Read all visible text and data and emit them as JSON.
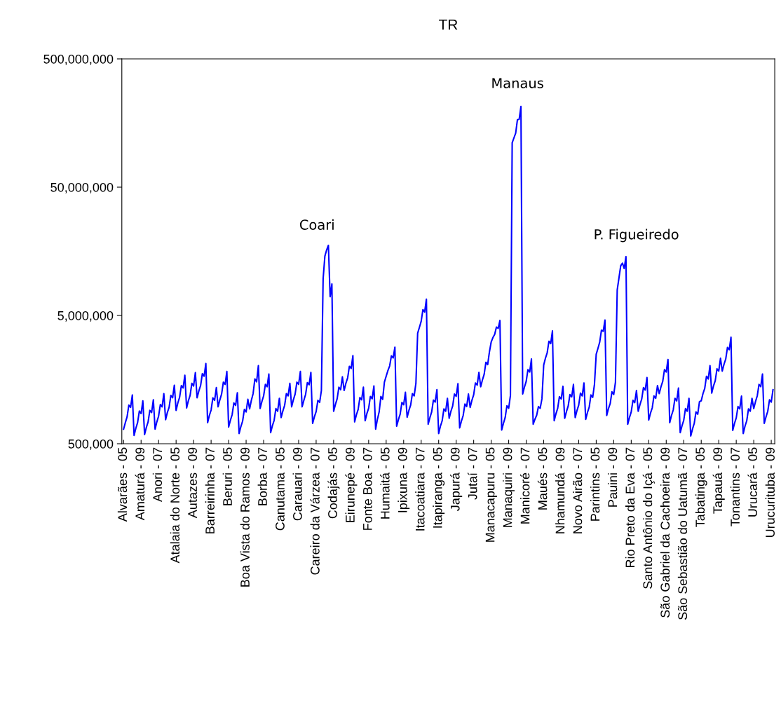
{
  "chart_data": {
    "type": "line",
    "title": "TR",
    "categories": [
      "Alvarães - 05",
      null,
      null,
      null,
      null,
      null,
      null,
      null,
      null,
      null,
      "Amaturá - 09",
      null,
      null,
      null,
      null,
      null,
      null,
      null,
      null,
      null,
      "Anori - 07",
      null,
      null,
      null,
      null,
      null,
      null,
      null,
      null,
      null,
      "Atalaia do Norte - 05",
      null,
      null,
      null,
      null,
      null,
      null,
      null,
      null,
      null,
      "Autazes - 09",
      null,
      null,
      null,
      null,
      null,
      null,
      null,
      null,
      null,
      "Barreirinha - 07",
      null,
      null,
      null,
      null,
      null,
      null,
      null,
      null,
      null,
      "Beruri - 05",
      null,
      null,
      null,
      null,
      null,
      null,
      null,
      null,
      null,
      "Boa Vista do Ramos - 09",
      null,
      null,
      null,
      null,
      null,
      null,
      null,
      null,
      null,
      "Borba - 07",
      null,
      null,
      null,
      null,
      null,
      null,
      null,
      null,
      null,
      "Canutama - 05",
      null,
      null,
      null,
      null,
      null,
      null,
      null,
      null,
      null,
      "Carauari - 09",
      null,
      null,
      null,
      null,
      null,
      null,
      null,
      null,
      null,
      "Careiro da Várzea - 07",
      null,
      null,
      null,
      null,
      null,
      null,
      null,
      null,
      null,
      "Codajás - 05",
      null,
      null,
      null,
      null,
      null,
      null,
      null,
      null,
      null,
      "Eirunepé - 09",
      null,
      null,
      null,
      null,
      null,
      null,
      null,
      null,
      null,
      "Fonte Boa - 07",
      null,
      null,
      null,
      null,
      null,
      null,
      null,
      null,
      null,
      "Humaitá - 05",
      null,
      null,
      null,
      null,
      null,
      null,
      null,
      null,
      null,
      "Ipixuna - 09",
      null,
      null,
      null,
      null,
      null,
      null,
      null,
      null,
      null,
      "Itacoatiara - 07",
      null,
      null,
      null,
      null,
      null,
      null,
      null,
      null,
      null,
      "Itapiranga - 05",
      null,
      null,
      null,
      null,
      null,
      null,
      null,
      null,
      null,
      "Japurá - 09",
      null,
      null,
      null,
      null,
      null,
      null,
      null,
      null,
      null,
      "Jutaí - 07",
      null,
      null,
      null,
      null,
      null,
      null,
      null,
      null,
      null,
      "Manacapuru - 05",
      null,
      null,
      null,
      null,
      null,
      null,
      null,
      null,
      null,
      "Manaquiri - 09",
      null,
      null,
      null,
      null,
      null,
      null,
      null,
      null,
      null,
      "Manicoré - 07",
      null,
      null,
      null,
      null,
      null,
      null,
      null,
      null,
      null,
      "Maués - 05",
      null,
      null,
      null,
      null,
      null,
      null,
      null,
      null,
      null,
      "Nhamundá - 09",
      null,
      null,
      null,
      null,
      null,
      null,
      null,
      null,
      null,
      "Novo Airão - 07",
      null,
      null,
      null,
      null,
      null,
      null,
      null,
      null,
      null,
      "Parintins - 05",
      null,
      null,
      null,
      null,
      null,
      null,
      null,
      null,
      null,
      "Pauini - 09",
      null,
      null,
      null,
      null,
      null,
      null,
      null,
      null,
      null,
      "Rio Preto da Eva - 07",
      null,
      null,
      null,
      null,
      null,
      null,
      null,
      null,
      null,
      "Santo Antônio do Içá - 05",
      null,
      null,
      null,
      null,
      null,
      null,
      null,
      null,
      null,
      "São Gabriel da Cachoeira - 09",
      null,
      null,
      null,
      null,
      null,
      null,
      null,
      null,
      null,
      "São Sebastião do Uatumã - 07",
      null,
      null,
      null,
      null,
      null,
      null,
      null,
      null,
      null,
      "Tabatinga - 05",
      null,
      null,
      null,
      null,
      null,
      null,
      null,
      null,
      null,
      "Tapauá - 09",
      null,
      null,
      null,
      null,
      null,
      null,
      null,
      null,
      null,
      "Tonantins - 07",
      null,
      null,
      null,
      null,
      null,
      null,
      null,
      null,
      null,
      "Urucará - 05",
      null,
      null,
      null,
      null,
      null,
      null,
      null,
      null,
      null,
      "Urucurituba - 09",
      null
    ],
    "values": [
      650000,
      730000,
      810000,
      1000000,
      960000,
      1200000,
      580000,
      660000,
      730000,
      900000,
      860000,
      1080000,
      590000,
      670000,
      740000,
      910000,
      875000,
      1100000,
      650000,
      740000,
      820000,
      1010000,
      970000,
      1230000,
      770000,
      875000,
      960000,
      1190000,
      1140000,
      1430000,
      910000,
      1040000,
      1150000,
      1420000,
      1360000,
      1710000,
      950000,
      1080000,
      1190000,
      1480000,
      1410000,
      1790000,
      1140000,
      1290000,
      1420000,
      1760000,
      1680000,
      2110000,
      730000,
      830000,
      915000,
      1140000,
      1090000,
      1370000,
      970000,
      1100000,
      1220000,
      1510000,
      1450000,
      1830000,
      675000,
      760000,
      840000,
      1040000,
      995000,
      1250000,
      600000,
      680000,
      750000,
      925000,
      885000,
      1110000,
      935000,
      1090000,
      1230000,
      1600000,
      1520000,
      2030000,
      940000,
      1065000,
      1180000,
      1450000,
      1390000,
      1750000,
      610000,
      690000,
      760000,
      940000,
      895000,
      1130000,
      800000,
      900000,
      995000,
      1230000,
      1180000,
      1480000,
      970000,
      1100000,
      1220000,
      1510000,
      1450000,
      1830000,
      970000,
      1090000,
      1215000,
      1500000,
      1440000,
      1800000,
      720000,
      810000,
      890000,
      1090000,
      1050000,
      1300000,
      9700000,
      14500000,
      16200000,
      17600000,
      7000000,
      8800000,
      895000,
      1010000,
      1120000,
      1380000,
      1320000,
      1660000,
      1300000,
      1480000,
      1630000,
      2010000,
      1930000,
      2430000,
      740000,
      840000,
      925000,
      1145000,
      1100000,
      1380000,
      755000,
      860000,
      945000,
      1170000,
      1120000,
      1410000,
      650000,
      775000,
      885000,
      1170000,
      1110000,
      1510000,
      1680000,
      1860000,
      2020000,
      2420000,
      2330000,
      2830000,
      685000,
      770000,
      850000,
      1050000,
      1005000,
      1260000,
      805000,
      910000,
      1000000,
      1230000,
      1180000,
      1480000,
      3640000,
      4040000,
      4490000,
      5550000,
      5320000,
      6700000,
      710000,
      800000,
      885000,
      1095000,
      1055000,
      1320000,
      600000,
      685000,
      755000,
      935000,
      895000,
      1130000,
      790000,
      895000,
      985000,
      1220000,
      1170000,
      1470000,
      665000,
      750000,
      830000,
      1020000,
      975000,
      1220000,
      960000,
      1090000,
      1205000,
      1490000,
      1430000,
      1800000,
      1390000,
      1570000,
      1740000,
      2160000,
      2070000,
      2600000,
      3100000,
      3360000,
      3560000,
      4060000,
      3960000,
      4570000,
      640000,
      720000,
      800000,
      990000,
      945000,
      1190000,
      111000000,
      121000000,
      132000000,
      168000000,
      169000000,
      213000000,
      1220000,
      1380000,
      1530000,
      1890000,
      1810000,
      2290000,
      710000,
      775000,
      835000,
      975000,
      945000,
      1120000,
      2050000,
      2320000,
      2560000,
      3150000,
      3020000,
      3790000,
      755000,
      855000,
      945000,
      1165000,
      1115000,
      1400000,
      790000,
      890000,
      985000,
      1210000,
      1160000,
      1450000,
      800000,
      905000,
      1000000,
      1240000,
      1180000,
      1490000,
      775000,
      875000,
      965000,
      1200000,
      1150000,
      1450000,
      2490000,
      2770000,
      3100000,
      3840000,
      3760000,
      4600000,
      830000,
      940000,
      1030000,
      1270000,
      1210000,
      1510000,
      7900000,
      9800000,
      12200000,
      12800000,
      11600000,
      14400000,
      710000,
      800000,
      885000,
      1090000,
      1045000,
      1300000,
      895000,
      1010000,
      1115000,
      1370000,
      1310000,
      1640000,
      765000,
      865000,
      950000,
      1180000,
      1130000,
      1420000,
      1230000,
      1390000,
      1530000,
      1890000,
      1810000,
      2270000,
      730000,
      830000,
      915000,
      1130000,
      1080000,
      1360000,
      610000,
      690000,
      760000,
      940000,
      895000,
      1130000,
      575000,
      650000,
      720000,
      885000,
      850000,
      1065000,
      1080000,
      1230000,
      1350000,
      1680000,
      1600000,
      2030000,
      1240000,
      1410000,
      1550000,
      1920000,
      1840000,
      2320000,
      1840000,
      2080000,
      2290000,
      2820000,
      2700000,
      3380000,
      635000,
      720000,
      795000,
      975000,
      935000,
      1175000,
      600000,
      685000,
      755000,
      935000,
      895000,
      1130000,
      940000,
      1065000,
      1180000,
      1450000,
      1390000,
      1750000,
      720000,
      810000,
      895000,
      1100000,
      1055000,
      1320000
    ],
    "color": "#0000ff",
    "log": "y",
    "ylim": [
      500000,
      500000000
    ],
    "yticks": [
      {
        "value": 500000,
        "label": "500,000"
      },
      {
        "value": 5000000,
        "label": "5,000,000"
      },
      {
        "value": 50000000,
        "label": "50,000,000"
      },
      {
        "value": 500000000,
        "label": "500,000,000"
      }
    ],
    "annotations": [
      "Coari",
      "Manaus",
      "P. Figueiredo"
    ],
    "grid": false,
    "legend": false
  }
}
